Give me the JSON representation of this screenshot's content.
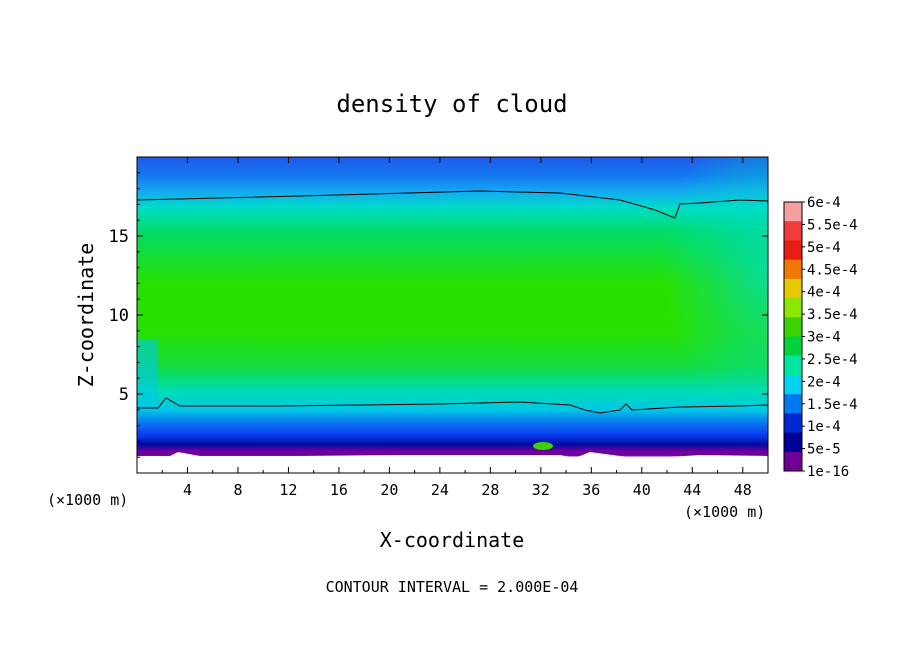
{
  "chart_data": {
    "type": "heatmap",
    "title": "density of cloud",
    "xlabel": "X-coordinate",
    "ylabel": "Z-coordinate",
    "x_unit_label": "(×1000 m)",
    "x_unit_label_right": "(×1000 m)",
    "xlim": [
      0,
      50
    ],
    "ylim": [
      0,
      20
    ],
    "x_ticks": [
      4,
      8,
      12,
      16,
      20,
      24,
      28,
      32,
      36,
      40,
      44,
      48
    ],
    "y_ticks": [
      5,
      10,
      15
    ],
    "footer": "CONTOUR INTERVAL = 2.000E-04",
    "colorbar": {
      "levels": [
        "6e-4",
        "5.5e-4",
        "5e-4",
        "4.5e-4",
        "4e-4",
        "3.5e-4",
        "3e-4",
        "2.5e-4",
        "2e-4",
        "1.5e-4",
        "1e-4",
        "5e-5",
        "1e-16"
      ],
      "colors": [
        "#f4a0a0",
        "#f03c3c",
        "#e81e14",
        "#f07800",
        "#e6c800",
        "#8ce600",
        "#3cd200",
        "#00d23c",
        "#00e6a0",
        "#00d2f0",
        "#0078f0",
        "#0028d2",
        "#000096",
        "#6e0096"
      ]
    },
    "field": {
      "description_colors": {
        "top_edge": "#1e5aeb",
        "upper_transition": "#14aaf0",
        "cyan_band": "#00dcc8",
        "core_green": "#14dc14",
        "core_bright": "#28e600",
        "lower_cyan": "#00c8e6",
        "lower_blue": "#0a50f0",
        "dark_blue": "#000aa0",
        "base_purple": "#6e00a0"
      }
    }
  }
}
